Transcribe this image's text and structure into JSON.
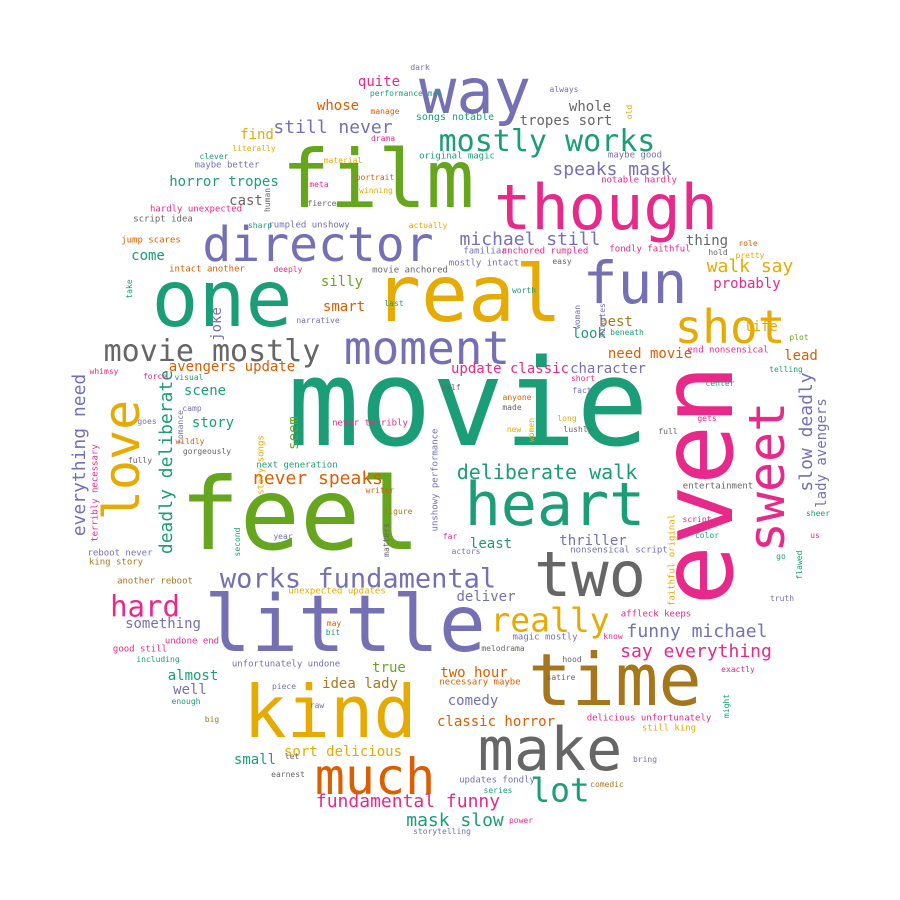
{
  "colors": {
    "teal": "#1b9e77",
    "orange": "#d95f02",
    "purple": "#7570b3",
    "pink": "#e7298a",
    "green": "#66a61e",
    "gold": "#e6ab02",
    "brown": "#a6761d",
    "gray": "#666666"
  },
  "words": [
    {
      "text": "movie",
      "color": "teal"
    },
    {
      "text": "even",
      "color": "pink"
    },
    {
      "text": "feel",
      "color": "green"
    },
    {
      "text": "little",
      "color": "purple"
    },
    {
      "text": "one",
      "color": "teal"
    },
    {
      "text": "real",
      "color": "gold"
    },
    {
      "text": "film",
      "color": "green"
    },
    {
      "text": "time",
      "color": "brown"
    },
    {
      "text": "kind",
      "color": "gold"
    },
    {
      "text": "way",
      "color": "purple"
    },
    {
      "text": "though",
      "color": "pink"
    },
    {
      "text": "make",
      "color": "gray"
    },
    {
      "text": "two",
      "color": "gray"
    },
    {
      "text": "heart",
      "color": "teal"
    },
    {
      "text": "director",
      "color": "purple"
    },
    {
      "text": "fun",
      "color": "purple"
    },
    {
      "text": "much",
      "color": "orange"
    },
    {
      "text": "love",
      "color": "gold"
    },
    {
      "text": "sweet",
      "color": "pink"
    },
    {
      "text": "moment",
      "color": "purple"
    },
    {
      "text": "shot",
      "color": "gold"
    },
    {
      "text": "movie mostly",
      "color": "gray"
    },
    {
      "text": "mostly works",
      "color": "teal"
    },
    {
      "text": "works fundamental",
      "color": "purple"
    },
    {
      "text": "lot",
      "color": "teal"
    },
    {
      "text": "really",
      "color": "gold"
    },
    {
      "text": "hard",
      "color": "pink"
    },
    {
      "text": "deliberate walk",
      "color": "teal"
    },
    {
      "text": "never speaks",
      "color": "orange"
    },
    {
      "text": "fundamental funny",
      "color": "pink"
    },
    {
      "text": "funny michael",
      "color": "purple"
    },
    {
      "text": "say everything",
      "color": "pink"
    },
    {
      "text": "speaks mask",
      "color": "purple"
    },
    {
      "text": "michael still",
      "color": "purple"
    },
    {
      "text": "mask slow",
      "color": "teal"
    },
    {
      "text": "still never",
      "color": "purple"
    },
    {
      "text": "deadly deliberate",
      "color": "teal"
    },
    {
      "text": "slow deadly",
      "color": "purple"
    },
    {
      "text": "walk say",
      "color": "gold"
    },
    {
      "text": "everything need",
      "color": "purple"
    },
    {
      "text": "lady avengers",
      "color": "purple"
    },
    {
      "text": "need movie",
      "color": "orange"
    },
    {
      "text": "update classic",
      "color": "pink"
    },
    {
      "text": "character",
      "color": "purple"
    },
    {
      "text": "horror tropes",
      "color": "teal"
    },
    {
      "text": "tropes sort",
      "color": "gray"
    },
    {
      "text": "avengers update",
      "color": "orange"
    },
    {
      "text": "classic horror",
      "color": "orange"
    },
    {
      "text": "sort delicious",
      "color": "gold"
    },
    {
      "text": "idea lady",
      "color": "brown"
    },
    {
      "text": "two hour",
      "color": "orange"
    },
    {
      "text": "whose",
      "color": "orange"
    },
    {
      "text": "quite",
      "color": "pink"
    },
    {
      "text": "find",
      "color": "gold"
    },
    {
      "text": "cast",
      "color": "gray"
    },
    {
      "text": "come",
      "color": "teal"
    },
    {
      "text": "smart",
      "color": "orange"
    },
    {
      "text": "silly",
      "color": "green"
    },
    {
      "text": "joke",
      "color": "purple"
    },
    {
      "text": "scene",
      "color": "teal"
    },
    {
      "text": "story",
      "color": "teal"
    },
    {
      "text": "seem",
      "color": "green"
    },
    {
      "text": "least",
      "color": "teal"
    },
    {
      "text": "thriller",
      "color": "purple"
    },
    {
      "text": "deliver",
      "color": "purple"
    },
    {
      "text": "something",
      "color": "purple"
    },
    {
      "text": "true",
      "color": "green"
    },
    {
      "text": "almost",
      "color": "teal"
    },
    {
      "text": "well",
      "color": "purple"
    },
    {
      "text": "small",
      "color": "teal"
    },
    {
      "text": "comedy",
      "color": "purple"
    },
    {
      "text": "best",
      "color": "brown"
    },
    {
      "text": "look",
      "color": "teal"
    },
    {
      "text": "lead",
      "color": "orange"
    },
    {
      "text": "life",
      "color": "gold"
    },
    {
      "text": "probably",
      "color": "pink"
    },
    {
      "text": "thing",
      "color": "gray"
    },
    {
      "text": "whole",
      "color": "gray"
    },
    {
      "text": "songs notable",
      "color": "teal"
    },
    {
      "text": "original magic",
      "color": "teal"
    },
    {
      "text": "maybe good",
      "color": "purple"
    },
    {
      "text": "notable hardly",
      "color": "pink"
    },
    {
      "text": "fondly faithful",
      "color": "pink"
    },
    {
      "text": "faithful original",
      "color": "gold"
    },
    {
      "text": "unexpected updates",
      "color": "gold"
    },
    {
      "text": "nonsensical script",
      "color": "purple"
    },
    {
      "text": "end nonsensical",
      "color": "pink"
    },
    {
      "text": "magic mostly",
      "color": "purple"
    },
    {
      "text": "updates fondly",
      "color": "purple"
    },
    {
      "text": "delicious unfortunately",
      "color": "pink"
    },
    {
      "text": "unfortunately undone",
      "color": "purple"
    },
    {
      "text": "undone end",
      "color": "pink"
    },
    {
      "text": "still king",
      "color": "gold"
    },
    {
      "text": "king story",
      "color": "brown"
    },
    {
      "text": "story songs",
      "color": "gold"
    },
    {
      "text": "reboot never",
      "color": "purple"
    },
    {
      "text": "another reboot",
      "color": "brown"
    },
    {
      "text": "terribly necessary",
      "color": "pink"
    },
    {
      "text": "never terribly",
      "color": "pink"
    },
    {
      "text": "necessary maybe",
      "color": "orange"
    },
    {
      "text": "next generation",
      "color": "teal"
    },
    {
      "text": "good still",
      "color": "pink"
    },
    {
      "text": "maybe better",
      "color": "purple"
    },
    {
      "text": "hardly unexpected",
      "color": "pink"
    },
    {
      "text": "jump scares",
      "color": "orange"
    },
    {
      "text": "intact another",
      "color": "orange"
    },
    {
      "text": "mostly intact",
      "color": "purple"
    },
    {
      "text": "movie anchored",
      "color": "gray"
    },
    {
      "text": "familiar",
      "color": "purple"
    },
    {
      "text": "anchored rumpled",
      "color": "pink"
    },
    {
      "text": "rumpled unshowy",
      "color": "purple"
    },
    {
      "text": "unshowy performance",
      "color": "purple"
    },
    {
      "text": "performance man",
      "color": "teal"
    },
    {
      "text": "affleck keeps",
      "color": "pink"
    },
    {
      "text": "script idea",
      "color": "gray"
    },
    {
      "text": "entertainment",
      "color": "gray"
    },
    {
      "text": "dark",
      "color": "purple"
    },
    {
      "text": "always",
      "color": "purple"
    },
    {
      "text": "manage",
      "color": "orange"
    },
    {
      "text": "drama",
      "color": "pink"
    },
    {
      "text": "old",
      "color": "gold"
    },
    {
      "text": "literally",
      "color": "gold"
    },
    {
      "text": "clever",
      "color": "teal"
    },
    {
      "text": "material",
      "color": "gold"
    },
    {
      "text": "portrait",
      "color": "orange"
    },
    {
      "text": "winning",
      "color": "gold"
    },
    {
      "text": "meta",
      "color": "pink"
    },
    {
      "text": "human",
      "color": "gray"
    },
    {
      "text": "fierce",
      "color": "gray"
    },
    {
      "text": "sharp",
      "color": "teal"
    },
    {
      "text": "actually",
      "color": "gold"
    },
    {
      "text": "deeply",
      "color": "pink"
    },
    {
      "text": "easy",
      "color": "gray"
    },
    {
      "text": "role",
      "color": "orange"
    },
    {
      "text": "pretty",
      "color": "gold"
    },
    {
      "text": "hold",
      "color": "gray"
    },
    {
      "text": "take",
      "color": "teal"
    },
    {
      "text": "last",
      "color": "teal"
    },
    {
      "text": "narrative",
      "color": "purple"
    },
    {
      "text": "worth",
      "color": "teal"
    },
    {
      "text": "woman",
      "color": "purple"
    },
    {
      "text": "minutes",
      "color": "purple"
    },
    {
      "text": "beneath",
      "color": "teal"
    },
    {
      "text": "plot",
      "color": "green"
    },
    {
      "text": "whimsy",
      "color": "pink"
    },
    {
      "text": "force",
      "color": "pink"
    },
    {
      "text": "visual",
      "color": "teal"
    },
    {
      "text": "camp",
      "color": "purple"
    },
    {
      "text": "romance",
      "color": "purple"
    },
    {
      "text": "goes",
      "color": "purple"
    },
    {
      "text": "wildly",
      "color": "orange"
    },
    {
      "text": "gorgeously",
      "color": "gray"
    },
    {
      "text": "fully",
      "color": "gray"
    },
    {
      "text": "half",
      "color": "gray"
    },
    {
      "text": "anyone",
      "color": "orange"
    },
    {
      "text": "made",
      "color": "gray"
    },
    {
      "text": "fact",
      "color": "purple"
    },
    {
      "text": "short",
      "color": "pink"
    },
    {
      "text": "telling",
      "color": "teal"
    },
    {
      "text": "center",
      "color": "teal"
    },
    {
      "text": "gets",
      "color": "pink"
    },
    {
      "text": "long",
      "color": "gold"
    },
    {
      "text": "lushly",
      "color": "gray"
    },
    {
      "text": "new",
      "color": "gold"
    },
    {
      "text": "women",
      "color": "gold"
    },
    {
      "text": "full",
      "color": "gray"
    },
    {
      "text": "writer",
      "color": "orange"
    },
    {
      "text": "figure",
      "color": "brown"
    },
    {
      "text": "matters",
      "color": "gray"
    },
    {
      "text": "actors",
      "color": "purple"
    },
    {
      "text": "far",
      "color": "pink"
    },
    {
      "text": "second",
      "color": "teal"
    },
    {
      "text": "year",
      "color": "purple"
    },
    {
      "text": "color",
      "color": "teal"
    },
    {
      "text": "script",
      "color": "pink"
    },
    {
      "text": "sheer",
      "color": "teal"
    },
    {
      "text": "us",
      "color": "pink"
    },
    {
      "text": "go",
      "color": "teal"
    },
    {
      "text": "flawed",
      "color": "teal"
    },
    {
      "text": "truth",
      "color": "purple"
    },
    {
      "text": "know",
      "color": "pink"
    },
    {
      "text": "hood",
      "color": "gray"
    },
    {
      "text": "melodrama",
      "color": "gray"
    },
    {
      "text": "may",
      "color": "orange"
    },
    {
      "text": "bit",
      "color": "teal"
    },
    {
      "text": "satire",
      "color": "gray"
    },
    {
      "text": "exactly",
      "color": "pink"
    },
    {
      "text": "might",
      "color": "teal"
    },
    {
      "text": "piece",
      "color": "purple"
    },
    {
      "text": "raw",
      "color": "purple"
    },
    {
      "text": "enough",
      "color": "teal"
    },
    {
      "text": "including",
      "color": "teal"
    },
    {
      "text": "big",
      "color": "brown"
    },
    {
      "text": "let",
      "color": "gray"
    },
    {
      "text": "earnest",
      "color": "gray"
    },
    {
      "text": "bring",
      "color": "purple"
    },
    {
      "text": "comedic",
      "color": "brown"
    },
    {
      "text": "series",
      "color": "teal"
    },
    {
      "text": "power",
      "color": "pink"
    },
    {
      "text": "storytelling",
      "color": "purple"
    }
  ]
}
